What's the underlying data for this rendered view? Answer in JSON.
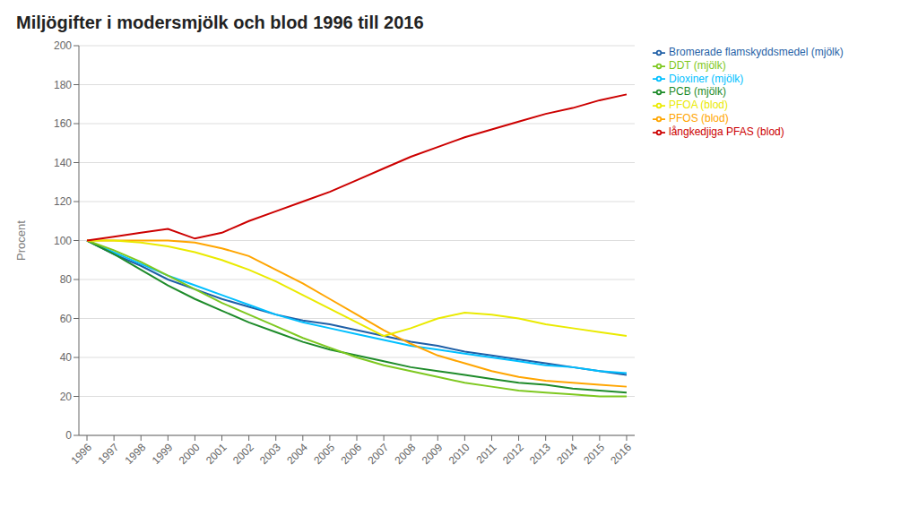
{
  "chart_data": {
    "type": "line",
    "title": "Miljögifter i modersmjölk och blod 1996 till 2016",
    "y_label": "Procent",
    "x": [
      1996,
      1997,
      1998,
      1999,
      2000,
      2001,
      2002,
      2003,
      2004,
      2005,
      2006,
      2007,
      2008,
      2009,
      2010,
      2011,
      2012,
      2013,
      2014,
      2015,
      2016
    ],
    "xlim": [
      1995.7,
      2016.3
    ],
    "xticks": [
      1996,
      1997,
      1998,
      1999,
      2000,
      2001,
      2002,
      2003,
      2004,
      2005,
      2006,
      2007,
      2008,
      2009,
      2010,
      2011,
      2012,
      2013,
      2014,
      2015,
      2016
    ],
    "series": [
      {
        "name": "Bromerade flamskyddsmedel (mjölk)",
        "color": "#1F5FA6",
        "values": [
          100,
          93,
          87,
          80,
          75,
          70,
          66,
          62,
          59,
          57,
          54,
          51,
          48,
          46,
          43,
          41,
          39,
          37,
          35,
          33,
          31
        ]
      },
      {
        "name": "Dioxiner (mjölk)",
        "color": "#00BFFF",
        "values": [
          100,
          94,
          88,
          82,
          77,
          72,
          67,
          62,
          58,
          55,
          52,
          49,
          46,
          44,
          42,
          40,
          38,
          36,
          35,
          33,
          32
        ]
      },
      {
        "name": "PCB (mjölk)",
        "color": "#1E8B2A",
        "values": [
          100,
          93,
          85,
          77,
          70,
          64,
          58,
          53,
          48,
          44,
          41,
          38,
          35,
          33,
          31,
          29,
          27,
          26,
          24,
          23,
          22
        ]
      },
      {
        "name": "DDT (mjölk)",
        "color": "#7EC820",
        "values": [
          100,
          95,
          89,
          82,
          75,
          68,
          62,
          56,
          50,
          45,
          40,
          36,
          33,
          30,
          27,
          25,
          23,
          22,
          21,
          20,
          20
        ]
      },
      {
        "name": "PFOS (blod)",
        "color": "#FFA500",
        "values": [
          100,
          100,
          100,
          100,
          99,
          96,
          92,
          85,
          78,
          70,
          62,
          54,
          47,
          41,
          37,
          33,
          30,
          28,
          27,
          26,
          25
        ]
      },
      {
        "name": "PFOA (blod)",
        "color": "#EAEA00",
        "values": [
          100,
          100,
          99,
          97,
          94,
          90,
          85,
          79,
          72,
          65,
          58,
          51,
          55,
          60,
          63,
          62,
          60,
          57,
          55,
          53,
          51
        ]
      },
      {
        "name": "långkedjiga PFAS (blod)",
        "color": "#CC0000",
        "values": [
          100,
          102,
          104,
          106,
          101,
          104,
          110,
          115,
          120,
          125,
          131,
          137,
          143,
          148,
          153,
          157,
          161,
          165,
          168,
          172,
          175
        ]
      }
    ],
    "ylim": [
      0,
      200
    ],
    "yticks": [
      0,
      20,
      40,
      60,
      80,
      100,
      120,
      140,
      160,
      180,
      200
    ],
    "grid": true,
    "legend": "right"
  }
}
